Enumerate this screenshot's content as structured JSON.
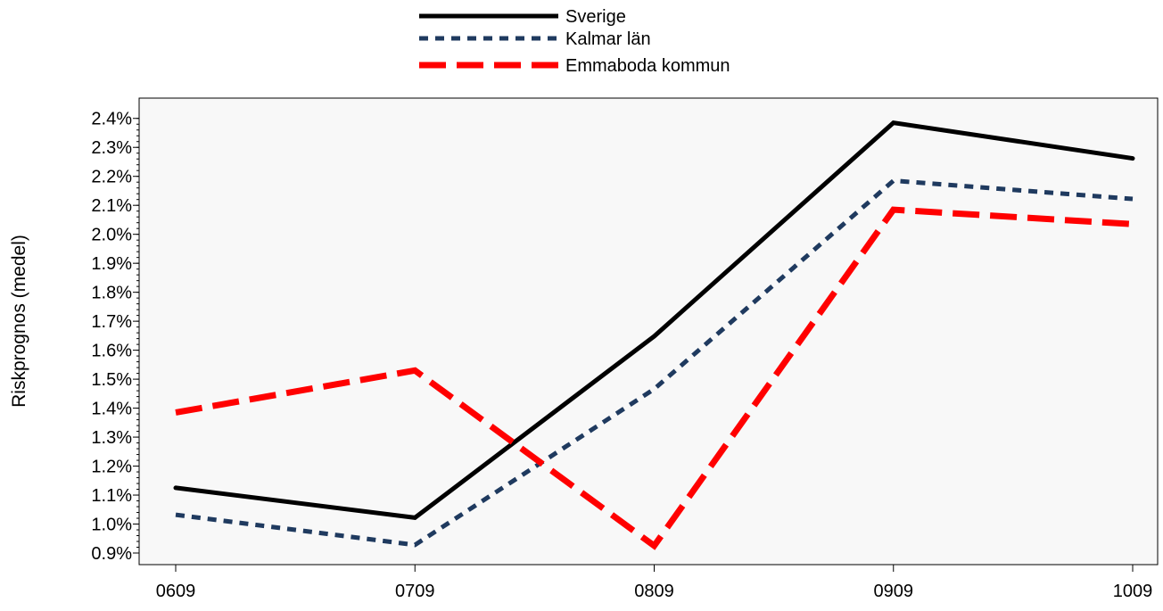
{
  "chart_data": {
    "type": "line",
    "title": "",
    "xlabel": "",
    "ylabel": "Riskprognos (medel)",
    "categories": [
      "0609",
      "0709",
      "0809",
      "0909",
      "1009"
    ],
    "ylim": [
      0.0086,
      0.0247
    ],
    "yticks": [
      {
        "value": 0.009,
        "label": "0.9%"
      },
      {
        "value": 0.01,
        "label": "1.0%"
      },
      {
        "value": 0.011,
        "label": "1.1%"
      },
      {
        "value": 0.012,
        "label": "1.2%"
      },
      {
        "value": 0.013,
        "label": "1.3%"
      },
      {
        "value": 0.014,
        "label": "1.4%"
      },
      {
        "value": 0.015,
        "label": "1.5%"
      },
      {
        "value": 0.016,
        "label": "1.6%"
      },
      {
        "value": 0.017,
        "label": "1.7%"
      },
      {
        "value": 0.018,
        "label": "1.8%"
      },
      {
        "value": 0.019,
        "label": "1.9%"
      },
      {
        "value": 0.02,
        "label": "2.0%"
      },
      {
        "value": 0.021,
        "label": "2.1%"
      },
      {
        "value": 0.022,
        "label": "2.2%"
      },
      {
        "value": 0.023,
        "label": "2.3%"
      },
      {
        "value": 0.024,
        "label": "2.4%"
      }
    ],
    "grid": false,
    "legend_position": "top-center",
    "series": [
      {
        "name": "Sverige",
        "color": "#000000",
        "style": "solid",
        "values": [
          0.01125,
          0.01022,
          0.01648,
          0.02385,
          0.02262
        ]
      },
      {
        "name": "Kalmar län",
        "color": "#1f3a5f",
        "style": "dotted",
        "values": [
          0.01032,
          0.00928,
          0.01466,
          0.02185,
          0.02122
        ]
      },
      {
        "name": "Emmaboda kommun",
        "color": "#ff0000",
        "style": "dashed",
        "values": [
          0.01385,
          0.0153,
          0.00925,
          0.02085,
          0.02035
        ]
      }
    ]
  },
  "colors": {
    "plot_background": "#f8f8f8",
    "axis": "#000000"
  }
}
